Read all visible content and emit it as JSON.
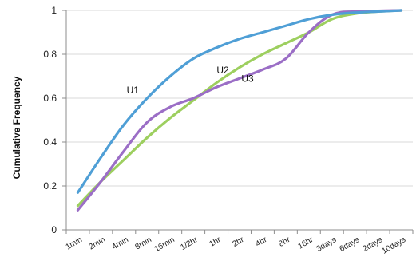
{
  "chart_data": {
    "type": "line",
    "title": "",
    "xlabel": "",
    "ylabel": "Cumulative Frequency",
    "categories": [
      "1min",
      "2min",
      "4min",
      "8min",
      "16min",
      "1/2hr",
      "1hr",
      "2hr",
      "4hr",
      "8hr",
      "16hr",
      "3days",
      "6days",
      "2days",
      "10days"
    ],
    "ylim": [
      0,
      1
    ],
    "yticks": [
      0,
      0.2,
      0.4,
      0.6,
      0.8,
      1
    ],
    "ytick_labels": [
      "0",
      "0.2",
      "0.4",
      "0.6",
      "0.8",
      "1"
    ],
    "grid": "horizontal",
    "legend": "none",
    "series": [
      {
        "name": "U1",
        "color": "#4f9fd6",
        "values": [
          0.17,
          0.33,
          0.48,
          0.6,
          0.7,
          0.78,
          0.83,
          0.87,
          0.9,
          0.93,
          0.96,
          0.98,
          0.99,
          0.995,
          1.0
        ]
      },
      {
        "name": "U2",
        "color": "#9dcf5f",
        "values": [
          0.11,
          0.22,
          0.32,
          0.42,
          0.51,
          0.59,
          0.67,
          0.74,
          0.8,
          0.85,
          0.9,
          0.96,
          0.985,
          0.995,
          1.0
        ]
      },
      {
        "name": "U3",
        "color": "#9b6ec6",
        "values": [
          0.09,
          0.22,
          0.36,
          0.49,
          0.56,
          0.6,
          0.65,
          0.69,
          0.73,
          0.78,
          0.9,
          0.98,
          0.995,
          0.998,
          1.0
        ]
      }
    ]
  }
}
